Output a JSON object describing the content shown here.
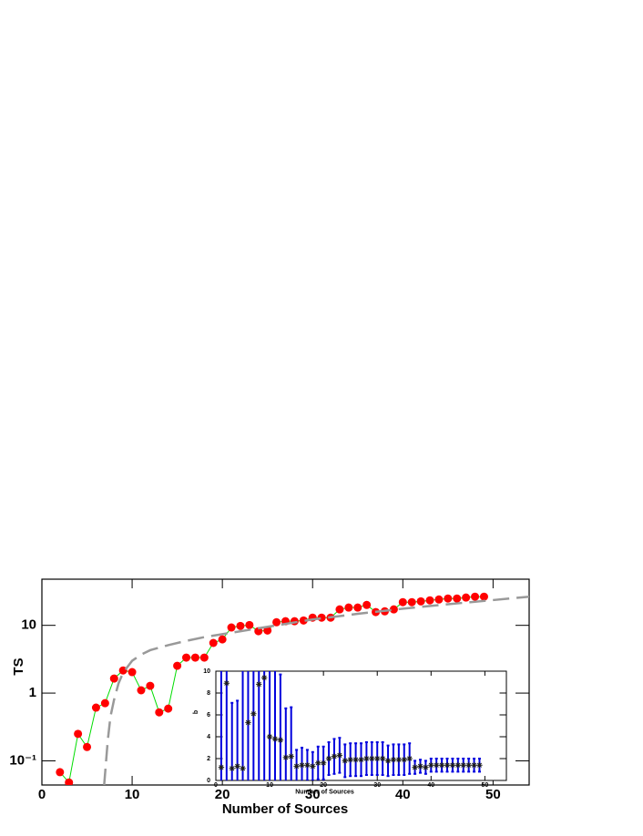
{
  "chart_data": [
    {
      "type": "line",
      "xlabel": "Number of Sources",
      "ylabel": "TS",
      "yscale": "log",
      "xlim": [
        0,
        54
      ],
      "ylim": [
        0.044,
        48
      ],
      "xticks": [
        0,
        10,
        20,
        30,
        40,
        50
      ],
      "yticks": [
        {
          "value": 0.1,
          "label": "10⁻¹"
        },
        1,
        10
      ],
      "series": [
        {
          "color": "#ff0000",
          "line_color": "#00dd00",
          "marker": "circle",
          "x": [
            2,
            3,
            4,
            5,
            6,
            7,
            8,
            9,
            10,
            11,
            12,
            13,
            14,
            15,
            16,
            17,
            18,
            19,
            20,
            21,
            22,
            23,
            24,
            25,
            26,
            27,
            28,
            29,
            30,
            31,
            32,
            33,
            34,
            35,
            36,
            37,
            38,
            39,
            40,
            41,
            42,
            43,
            44,
            45,
            46,
            47,
            48,
            49
          ],
          "values": [
            0.068,
            0.048,
            0.25,
            0.16,
            0.61,
            0.71,
            1.64,
            2.16,
            2.04,
            1.1,
            1.28,
            0.52,
            0.59,
            2.53,
            3.34,
            3.34,
            3.34,
            5.5,
            6.2,
            9.3,
            9.8,
            10.1,
            8.2,
            8.4,
            11.1,
            11.5,
            11.5,
            11.8,
            13.0,
            13.0,
            13.0,
            17.2,
            18.3,
            18.3,
            20.0,
            15.7,
            16.1,
            17.2,
            22.0,
            22.0,
            22.6,
            23.4,
            24.1,
            24.9,
            24.9,
            25.7,
            26.5,
            26.5
          ]
        },
        {
          "color": "#999999",
          "dash": "18,8",
          "x": [
            6.9,
            7.3,
            7.6,
            8,
            8.5,
            9,
            10,
            11,
            12,
            14,
            16,
            18,
            20,
            23,
            26,
            30,
            35,
            40,
            45,
            50,
            54
          ],
          "values": [
            0.044,
            0.2,
            0.45,
            0.8,
            1.4,
            2.0,
            3.0,
            3.7,
            4.3,
            5.1,
            5.9,
            6.7,
            7.4,
            8.6,
            10.0,
            12.2,
            14.8,
            17.6,
            20.5,
            23.6,
            26.5
          ]
        }
      ]
    },
    {
      "type": "scatter",
      "xlabel": "Number of Sources",
      "ylabel": "b",
      "xlim": [
        0,
        54
      ],
      "ylim": [
        0,
        10
      ],
      "xticks": [
        0,
        10,
        20,
        30,
        40,
        50
      ],
      "yticks": [
        0,
        2,
        4,
        6,
        8,
        10
      ],
      "series": [
        {
          "color": "#1a1a1a",
          "error_color": "#0000dd",
          "marker": "asterisk",
          "x": [
            1,
            2,
            3,
            4,
            5,
            6,
            7,
            8,
            9,
            10,
            11,
            12,
            13,
            14,
            15,
            16,
            17,
            18,
            19,
            20,
            21,
            22,
            23,
            24,
            25,
            26,
            27,
            28,
            29,
            30,
            31,
            32,
            33,
            34,
            35,
            36,
            37,
            38,
            39,
            40,
            41,
            42,
            43,
            44,
            45,
            46,
            47,
            48,
            49
          ],
          "values": [
            1.2,
            8.9,
            1.1,
            1.3,
            1.1,
            5.3,
            6.1,
            8.8,
            9.4,
            4.0,
            3.8,
            3.7,
            2.1,
            2.2,
            1.3,
            1.4,
            1.4,
            1.3,
            1.6,
            1.6,
            2.0,
            2.2,
            2.3,
            1.8,
            1.9,
            1.9,
            1.9,
            2.0,
            2.0,
            2.0,
            2.0,
            1.8,
            1.9,
            1.9,
            1.9,
            2.0,
            1.2,
            1.3,
            1.2,
            1.4,
            1.4,
            1.4,
            1.4,
            1.4,
            1.4,
            1.4,
            1.4,
            1.4,
            1.4
          ],
          "errors": [
            10,
            10,
            6,
            6,
            9,
            10,
            10,
            10,
            10,
            10,
            10,
            6,
            4.5,
            4.5,
            1.5,
            1.6,
            1.4,
            1.3,
            1.5,
            1.5,
            1.5,
            1.6,
            1.6,
            1.5,
            1.5,
            1.5,
            1.5,
            1.5,
            1.5,
            1.5,
            1.5,
            1.4,
            1.4,
            1.4,
            1.4,
            1.4,
            0.6,
            0.6,
            0.6,
            0.6,
            0.6,
            0.6,
            0.6,
            0.6,
            0.6,
            0.6,
            0.6,
            0.6,
            0.6
          ]
        }
      ]
    }
  ]
}
